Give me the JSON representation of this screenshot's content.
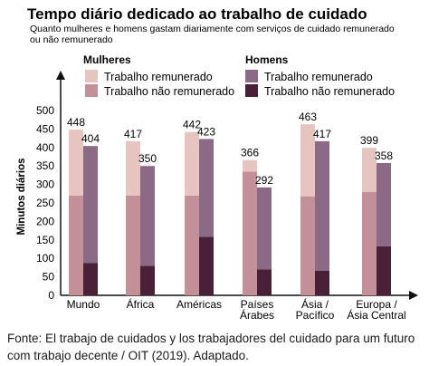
{
  "chart_data": {
    "type": "bar",
    "title": "Tempo diário dedicado ao trabalho de cuidado",
    "subtitle": [
      "Quanto mulheres e homens gastam diariamente com serviços de cuidado remunerado",
      "ou não remunerado"
    ],
    "ylabel": "Minutos diários",
    "ylim": [
      0,
      500
    ],
    "yticks": [
      0,
      50,
      100,
      150,
      200,
      250,
      300,
      350,
      400,
      450,
      500
    ],
    "grid": false,
    "legend_position": "top",
    "categories": [
      [
        "Mundo"
      ],
      [
        "África"
      ],
      [
        "Américas"
      ],
      [
        "Países",
        "Árabes"
      ],
      [
        "Ásia /",
        "Pacífico"
      ],
      [
        "Europa /",
        "Ásia Central"
      ]
    ],
    "groups": [
      {
        "name": "Mulheres",
        "totals": [
          448,
          417,
          442,
          366,
          463,
          399
        ],
        "series": [
          {
            "name": "Trabalho remunerado",
            "values": [
              178,
              147,
              172,
              31,
              195,
              119
            ],
            "color": "#e6c4c0"
          },
          {
            "name": "Trabalho não remunerado",
            "values": [
              270,
              270,
              270,
              335,
              268,
              280
            ],
            "color": "#c39098"
          }
        ]
      },
      {
        "name": "Homens",
        "totals": [
          404,
          350,
          423,
          292,
          417,
          358
        ],
        "series": [
          {
            "name": "Trabalho remunerado",
            "values": [
              317,
              270,
              265,
              222,
              350,
              225
            ],
            "color": "#8c6a85"
          },
          {
            "name": "Trabalho não remunerado",
            "values": [
              87,
              80,
              158,
              70,
              67,
              133
            ],
            "color": "#4a2037"
          }
        ]
      }
    ]
  },
  "source": "Fonte: El trabajo de cuidados y los trabajadores del cuidado para um futuro com trabajo decente / OIT (2019). Adaptado."
}
